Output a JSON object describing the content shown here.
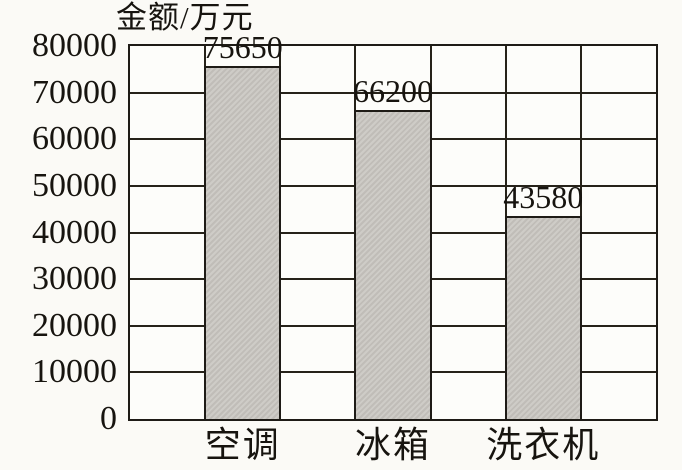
{
  "chart_data": {
    "type": "bar",
    "title": "金额/万元",
    "categories": [
      "空调",
      "冰箱",
      "洗衣机"
    ],
    "values": [
      75650,
      66200,
      43580
    ],
    "value_labels": [
      "75650",
      "66200",
      "43580"
    ],
    "ylim": [
      0,
      80000
    ],
    "ytick_step": 10000,
    "ytick_labels": [
      "0",
      "10000",
      "20000",
      "30000",
      "40000",
      "50000",
      "60000",
      "70000",
      "80000"
    ],
    "xlabel": "",
    "ylabel": "金额/万元",
    "grid": "both",
    "legend": "none",
    "colors": {
      "bar_fill": "#c9c6c1",
      "line": "#1e1b16",
      "background": "#fbfaf6",
      "plot_background": "#fdfdfa",
      "text": "#17140f"
    }
  }
}
